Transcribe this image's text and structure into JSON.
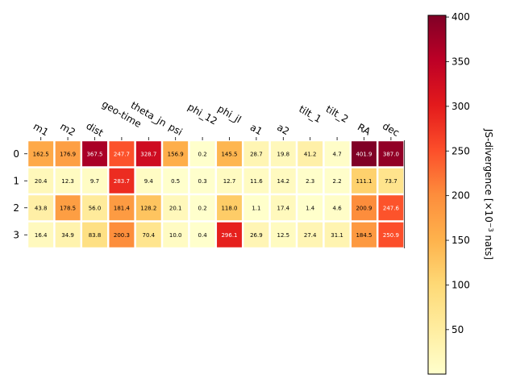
{
  "chart_data": {
    "type": "heatmap",
    "title": "",
    "columns": [
      "m1",
      "m2",
      "dist",
      "geo-time",
      "theta_jn",
      "psi",
      "phi_12",
      "phi_jl",
      "a1",
      "a2",
      "tilt_1",
      "tilt_2",
      "RA",
      "dec"
    ],
    "rows": [
      "0",
      "1",
      "2",
      "3"
    ],
    "values": [
      [
        162.5,
        176.9,
        367.5,
        247.7,
        328.7,
        156.9,
        0.2,
        145.5,
        28.7,
        19.8,
        41.2,
        4.7,
        401.9,
        387.0
      ],
      [
        20.4,
        12.3,
        9.7,
        283.7,
        9.4,
        0.5,
        0.3,
        12.7,
        11.6,
        14.2,
        2.3,
        2.2,
        111.1,
        73.7
      ],
      [
        43.8,
        178.5,
        56.0,
        181.4,
        128.2,
        20.1,
        0.2,
        118.0,
        1.1,
        17.4,
        1.4,
        4.6,
        200.9,
        247.6
      ],
      [
        16.4,
        34.9,
        83.8,
        200.3,
        70.4,
        10.0,
        0.4,
        296.1,
        26.9,
        12.5,
        27.4,
        31.1,
        184.5,
        250.9
      ]
    ],
    "colorbar": {
      "label_prefix": "JS-divergence [×10",
      "label_exp": "−3",
      "label_suffix": " nats]",
      "ticks": [
        50,
        100,
        150,
        200,
        250,
        300,
        350,
        400
      ],
      "range": [
        0.2,
        401.9
      ],
      "colormap": "YlOrRd"
    }
  }
}
